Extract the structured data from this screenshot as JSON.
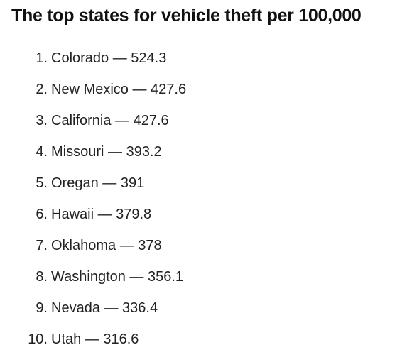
{
  "header": {
    "title": "The top states for vehicle theft per 100,000"
  },
  "list": {
    "items": [
      {
        "marker": "1.",
        "text": "Colorado — 524.3"
      },
      {
        "marker": "2.",
        "text": "New Mexico — 427.6"
      },
      {
        "marker": "3.",
        "text": "California — 427.6"
      },
      {
        "marker": "4.",
        "text": "Missouri — 393.2"
      },
      {
        "marker": "5.",
        "text": "Oregan — 391"
      },
      {
        "marker": "6.",
        "text": "Hawaii — 379.8"
      },
      {
        "marker": "7.",
        "text": "Oklahoma — 378"
      },
      {
        "marker": "8.",
        "text": "Washington — 356.1"
      },
      {
        "marker": "9.",
        "text": "Nevada — 336.4"
      },
      {
        "marker": "10.",
        "text": "Utah — 316.6"
      }
    ]
  }
}
